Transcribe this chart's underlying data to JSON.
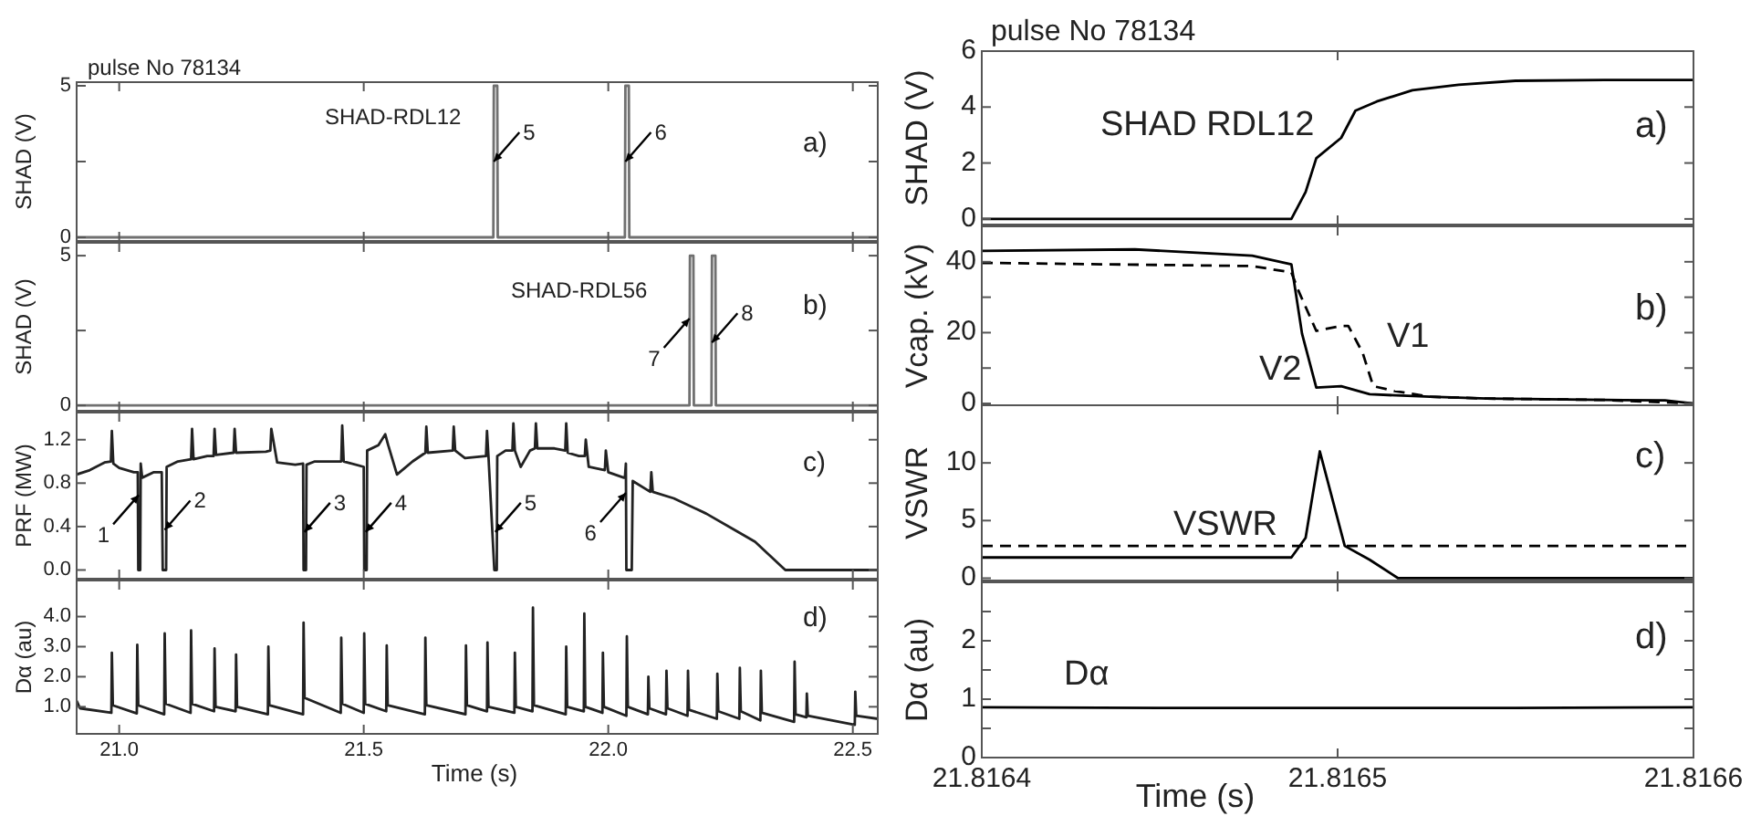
{
  "chart_data": [
    {
      "type": "line",
      "title": "pulse No 78134",
      "ylabel": "SHAD (V)",
      "xlim": [
        20.913,
        22.551
      ],
      "ylim": [
        -0.12,
        5.12
      ],
      "xticks": [
        {
          "value": 21,
          "label": null
        },
        {
          "value": 21.5,
          "label": null
        },
        {
          "value": 22,
          "label": null
        },
        {
          "value": 22.5,
          "label": null
        }
      ],
      "yticks": [
        0,
        {
          "value": 2.5,
          "label": null
        },
        5
      ],
      "tick_labels": "y",
      "series": [
        {
          "color": "#707070",
          "x": [
            20.913,
            21.765,
            21.766,
            21.773,
            21.774,
            22.034,
            22.035,
            22.042,
            22.043,
            22.551
          ],
          "values": [
            0,
            0,
            5,
            5,
            0,
            0,
            5,
            5,
            0,
            0
          ]
        }
      ],
      "annotations": [
        "SHAD-RDL12",
        "a)",
        {
          "text": "5",
          "x": 21.766,
          "y": 2.5
        },
        {
          "text": "6",
          "x": 22.035,
          "y": 2.5
        }
      ]
    },
    {
      "type": "line",
      "ylabel": "SHAD (V)",
      "xlim": [
        20.913,
        22.551
      ],
      "ylim": [
        -0.18,
        5.43
      ],
      "xticks": [
        {
          "value": 21,
          "label": null
        },
        {
          "value": 21.5,
          "label": null
        },
        {
          "value": 22,
          "label": null
        },
        {
          "value": 22.5,
          "label": null
        }
      ],
      "yticks": [
        0,
        {
          "value": 2.5,
          "label": null
        },
        5
      ],
      "tick_labels": "y",
      "series": [
        {
          "color": "#707070",
          "x": [
            20.913,
            22.166,
            22.167,
            22.174,
            22.175,
            22.211,
            22.212,
            22.219,
            22.22,
            22.551
          ],
          "values": [
            0,
            0,
            5,
            5,
            0,
            0,
            5,
            5,
            0,
            0
          ]
        }
      ],
      "annotations": [
        "SHAD-RDL56",
        "b)",
        {
          "text": "7",
          "x": 22.166,
          "y": 2.9
        },
        {
          "text": "8",
          "x": 22.212,
          "y": 2.1
        }
      ]
    },
    {
      "type": "line",
      "ylabel": "PRF (MW)",
      "xlim": [
        20.913,
        22.551
      ],
      "ylim": [
        -0.08,
        1.45
      ],
      "xticks": [
        {
          "value": 21,
          "label": null
        },
        {
          "value": 21.5,
          "label": null
        },
        {
          "value": 22,
          "label": null
        },
        {
          "value": 22.5,
          "label": null
        }
      ],
      "yticks": [
        {
          "value": 0,
          "label": "0.0"
        },
        0.4,
        0.8,
        1.2
      ],
      "tick_labels": "y",
      "series": [
        {
          "color": "#222222",
          "x": [
            20.913,
            20.94,
            20.97,
            20.983,
            20.985,
            20.988,
            21.0,
            21.03,
            21.038,
            21.039,
            21.043,
            21.044,
            21.047,
            21.07,
            21.087,
            21.089,
            21.096,
            21.097,
            21.12,
            21.147,
            21.149,
            21.152,
            21.18,
            21.193,
            21.195,
            21.198,
            21.234,
            21.236,
            21.239,
            21.3,
            21.309,
            21.311,
            21.323,
            21.36,
            21.376,
            21.377,
            21.382,
            21.383,
            21.4,
            21.454,
            21.456,
            21.459,
            21.5,
            21.501,
            21.506,
            21.507,
            21.53,
            21.544,
            21.55,
            21.568,
            21.6,
            21.626,
            21.628,
            21.631,
            21.682,
            21.684,
            21.687,
            21.707,
            21.75,
            21.752,
            21.755,
            21.767,
            21.772,
            21.773,
            21.79,
            21.804,
            21.806,
            21.809,
            21.821,
            21.84,
            21.85,
            21.852,
            21.855,
            21.89,
            21.912,
            21.914,
            21.917,
            21.94,
            21.952,
            21.954,
            21.96,
            21.993,
            21.995,
            22.0,
            22.032,
            22.034,
            22.036,
            22.037,
            22.048,
            22.05,
            22.086,
            22.088,
            22.091,
            22.134,
            22.2,
            22.258,
            22.3,
            22.362,
            22.551
          ],
          "values": [
            0.88,
            0.92,
            0.99,
            1.0,
            1.28,
            0.98,
            0.94,
            0.9,
            0.9,
            0,
            0,
            0.98,
            0.85,
            0.9,
            0.9,
            0,
            0,
            0.95,
            1.0,
            1.02,
            1.3,
            1.02,
            1.05,
            1.05,
            1.3,
            1.06,
            1.08,
            1.3,
            1.08,
            1.09,
            1.1,
            1.3,
            0.99,
            0.97,
            0.98,
            0,
            0,
            0.97,
            1.0,
            1.0,
            1.33,
            1.0,
            0.95,
            0,
            0,
            1.1,
            1.15,
            1.25,
            1.15,
            0.88,
            1.0,
            1.08,
            1.32,
            1.08,
            1.1,
            1.32,
            1.1,
            1.03,
            1.05,
            1.28,
            1.05,
            0,
            0,
            1.05,
            1.1,
            1.1,
            1.35,
            1.1,
            0.95,
            1.1,
            1.12,
            1.35,
            1.12,
            1.12,
            1.1,
            1.35,
            1.08,
            1.05,
            1.05,
            1.2,
            0.95,
            0.92,
            1.1,
            0.9,
            0.85,
            0.85,
            0.98,
            0,
            0,
            0.82,
            0.72,
            0.9,
            0.72,
            0.66,
            0.52,
            0.37,
            0.26,
            0,
            0
          ]
        }
      ],
      "annotations": [
        "c)",
        {
          "text": "1",
          "x": 21.04,
          "y": 0.69
        },
        {
          "text": "2",
          "x": 21.093,
          "y": 0.37
        },
        {
          "text": "3",
          "x": 21.379,
          "y": 0.35
        },
        {
          "text": "4",
          "x": 21.504,
          "y": 0.35
        },
        {
          "text": "5",
          "x": 21.769,
          "y": 0.35
        },
        {
          "text": "6",
          "x": 22.036,
          "y": 0.71
        }
      ]
    },
    {
      "type": "line",
      "ylabel": "Dα (au)",
      "xlabel": "Time (s)",
      "xlim": [
        20.913,
        22.551
      ],
      "ylim": [
        0.1,
        5.2
      ],
      "xticks": [
        {
          "value": 21,
          "label": "21.0"
        },
        {
          "value": 21.5,
          "label": "21.5"
        },
        {
          "value": 22,
          "label": "22.0"
        },
        {
          "value": 22.5,
          "label": "22.5"
        }
      ],
      "yticks": [
        {
          "value": 1,
          "label": "1.0"
        },
        {
          "value": 2,
          "label": "2.0"
        },
        {
          "value": 3,
          "label": "3.0"
        },
        {
          "value": 4,
          "label": "4.0"
        }
      ],
      "series": [
        {
          "color": "#222222",
          "x": [
            20.913,
            20.92,
            20.984,
            20.985,
            20.987,
            21.036,
            21.037,
            21.039,
            21.092,
            21.093,
            21.095,
            21.146,
            21.147,
            21.149,
            21.194,
            21.195,
            21.197,
            21.238,
            21.239,
            21.241,
            21.304,
            21.305,
            21.307,
            21.376,
            21.377,
            21.379,
            21.453,
            21.454,
            21.456,
            21.5,
            21.501,
            21.503,
            21.546,
            21.547,
            21.549,
            21.625,
            21.626,
            21.628,
            21.708,
            21.709,
            21.711,
            21.752,
            21.753,
            21.755,
            21.808,
            21.809,
            21.811,
            21.845,
            21.846,
            21.848,
            21.913,
            21.914,
            21.916,
            21.95,
            21.951,
            21.953,
            21.988,
            21.989,
            21.991,
            22.037,
            22.038,
            22.04,
            22.081,
            22.082,
            22.084,
            22.118,
            22.119,
            22.121,
            22.162,
            22.163,
            22.165,
            22.222,
            22.223,
            22.225,
            22.268,
            22.269,
            22.271,
            22.311,
            22.312,
            22.314,
            22.38,
            22.381,
            22.383,
            22.405,
            22.406,
            22.408,
            22.504,
            22.505,
            22.507,
            22.551
          ],
          "values": [
            1.2,
            0.95,
            0.8,
            2.8,
            1.05,
            0.78,
            3.06,
            1.05,
            0.75,
            3.44,
            1.1,
            0.8,
            3.54,
            1.1,
            0.85,
            2.94,
            1.0,
            0.85,
            2.74,
            1.0,
            0.75,
            3.0,
            1.05,
            0.75,
            3.8,
            1.3,
            0.8,
            3.3,
            1.1,
            0.8,
            3.44,
            1.1,
            0.85,
            3.04,
            1.05,
            0.75,
            3.3,
            1.05,
            0.75,
            3.04,
            1.05,
            0.85,
            3.14,
            1.0,
            0.8,
            2.8,
            1.0,
            0.85,
            4.3,
            1.05,
            0.75,
            3.0,
            1.0,
            0.85,
            4.1,
            1.0,
            0.8,
            2.8,
            1.0,
            0.7,
            3.34,
            1.0,
            0.75,
            2.0,
            0.95,
            0.75,
            2.2,
            0.95,
            0.7,
            2.2,
            0.9,
            0.6,
            2.1,
            0.85,
            0.6,
            2.3,
            0.85,
            0.55,
            2.2,
            0.8,
            0.5,
            2.5,
            0.75,
            0.65,
            1.44,
            0.7,
            0.4,
            1.5,
            0.7,
            0.6
          ]
        }
      ],
      "annotations": [
        "d)"
      ]
    },
    {
      "type": "line",
      "title": "pulse No 78134",
      "ylabel": "SHAD (V)",
      "xlim": [
        21.8164,
        21.8166
      ],
      "ylim": [
        -0.2,
        6
      ],
      "xticks": [
        21.8164,
        21.8165,
        21.8166
      ],
      "yticks": [
        0,
        2,
        4,
        6
      ],
      "tick_labels": "y",
      "series": [
        {
          "color": "#000000",
          "x": [
            21.8164,
            21.816487,
            21.816491,
            21.816494,
            21.816501,
            21.816505,
            21.816511,
            21.816521,
            21.816534,
            21.81655,
            21.816575,
            21.8166
          ],
          "values": [
            0,
            0,
            0.96,
            2.17,
            2.9,
            3.87,
            4.2,
            4.6,
            4.8,
            4.94,
            4.97,
            4.97
          ]
        }
      ],
      "annotations": [
        "SHAD RDL12",
        "a)"
      ]
    },
    {
      "type": "line",
      "ylabel": "Vcap. (kV)",
      "xlim": [
        21.8164,
        21.8166
      ],
      "ylim": [
        -0.5,
        50
      ],
      "xticks": [
        21.8164,
        21.8165,
        21.8166
      ],
      "yticks": [
        0,
        {
          "value": 10,
          "label": null
        },
        20,
        {
          "value": 30,
          "label": null
        },
        40
      ],
      "tick_labels": "y",
      "series": [
        {
          "color": "#000000",
          "x": [
            21.8164,
            21.816443,
            21.816476,
            21.816487,
            21.81649,
            21.816494,
            21.816501,
            21.816509,
            21.816526,
            21.816542,
            21.816575,
            21.816592,
            21.8166
          ],
          "values": [
            43.1,
            43.5,
            41.7,
            39.3,
            19.7,
            4.5,
            4.9,
            2.6,
            1.9,
            1.4,
            1.0,
            0.9,
            0
          ]
        },
        {
          "color": "#000000",
          "line_style": "dashed",
          "x": [
            21.8164,
            21.816476,
            21.816487,
            21.816489,
            21.816494,
            21.816501,
            21.816503,
            21.816507,
            21.81651,
            21.816516,
            21.816526,
            21.816542,
            21.816575,
            21.8166
          ],
          "values": [
            39.7,
            38.8,
            37,
            31.8,
            20.5,
            21.9,
            21.9,
            14.4,
            4.9,
            3.5,
            1.9,
            1.4,
            1.0,
            0
          ]
        }
      ],
      "annotations": [
        "V1",
        "V2",
        "b)"
      ]
    },
    {
      "type": "line",
      "ylabel": "VSWR",
      "xlim": [
        21.8164,
        21.8166
      ],
      "ylim": [
        -0.2,
        15
      ],
      "xticks": [
        21.8164,
        21.8165,
        21.8166
      ],
      "yticks": [
        0,
        5,
        10
      ],
      "tick_labels": "y",
      "series": [
        {
          "color": "#000000",
          "x": [
            21.8164,
            21.816487,
            21.816491,
            21.816495,
            21.816502,
            21.816509,
            21.816517,
            21.8166
          ],
          "values": [
            1.8,
            1.8,
            3.5,
            11,
            2.8,
            1.6,
            0,
            0
          ]
        }
      ],
      "ref_lines": [
        {
          "axis": "y",
          "value": 2.8,
          "color": "#000000",
          "line_style": "dashed"
        }
      ],
      "annotations": [
        "VSWR",
        "c)"
      ]
    },
    {
      "type": "line",
      "ylabel": "Dα (au)",
      "xlabel": "Time (s)",
      "xlim": [
        21.8164,
        21.8166
      ],
      "ylim": [
        0,
        3
      ],
      "xticks": [
        21.8164,
        21.8165,
        21.8166
      ],
      "yticks": [
        0,
        {
          "value": 0.5,
          "label": null
        },
        1,
        {
          "value": 1.5,
          "label": null
        },
        2,
        {
          "value": 2.5,
          "label": null
        }
      ],
      "series": [
        {
          "color": "#000000",
          "x": [
            21.8164,
            21.81645,
            21.8165,
            21.81655,
            21.8166
          ],
          "values": [
            0.86,
            0.85,
            0.85,
            0.85,
            0.86
          ]
        }
      ],
      "annotations": [
        "Dα",
        "d)"
      ]
    }
  ]
}
